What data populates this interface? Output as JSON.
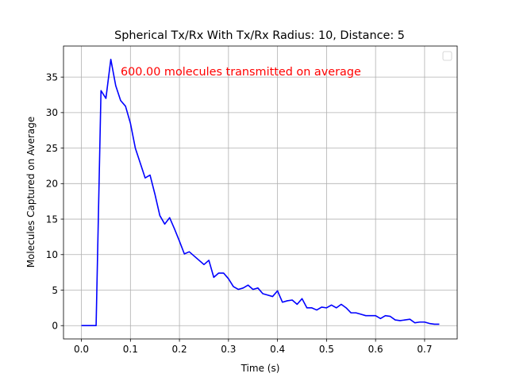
{
  "chart_data": {
    "type": "line",
    "title": "Spherical Tx/Rx With Tx/Rx Radius: 10, Distance: 5",
    "xlabel": "Time (s)",
    "ylabel": "Molecules Captured on Average",
    "annotation": "600.00 molecules transmitted on average",
    "annotation_color": "#ff0000",
    "line_color": "#0000ff",
    "grid": true,
    "legend": "upper-right (empty)",
    "xlim": [
      -0.0365,
      0.7665
    ],
    "ylim": [
      -1.875,
      39.375
    ],
    "xticks": [
      0.0,
      0.1,
      0.2,
      0.3,
      0.4,
      0.5,
      0.6,
      0.7
    ],
    "xtick_labels": [
      "0.0",
      "0.1",
      "0.2",
      "0.3",
      "0.4",
      "0.5",
      "0.6",
      "0.7"
    ],
    "yticks": [
      0,
      5,
      10,
      15,
      20,
      25,
      30,
      35
    ],
    "ytick_labels": [
      "0",
      "5",
      "10",
      "15",
      "20",
      "25",
      "30",
      "35"
    ],
    "series": [
      {
        "x": [
          0.0,
          0.01,
          0.02,
          0.03,
          0.04,
          0.05,
          0.06,
          0.07,
          0.08,
          0.09,
          0.1,
          0.11,
          0.12,
          0.13,
          0.14,
          0.15,
          0.16,
          0.17,
          0.18,
          0.19,
          0.2,
          0.21,
          0.22,
          0.23,
          0.24,
          0.25,
          0.26,
          0.27,
          0.28,
          0.29,
          0.3,
          0.31,
          0.32,
          0.33,
          0.34,
          0.35,
          0.36,
          0.37,
          0.38,
          0.39,
          0.4,
          0.41,
          0.42,
          0.43,
          0.44,
          0.45,
          0.46,
          0.47,
          0.48,
          0.49,
          0.5,
          0.51,
          0.52,
          0.53,
          0.54,
          0.55,
          0.56,
          0.57,
          0.58,
          0.59,
          0.6,
          0.61,
          0.62,
          0.63,
          0.64,
          0.65,
          0.66,
          0.67,
          0.68,
          0.69,
          0.7,
          0.71,
          0.72,
          0.73
        ],
        "values": [
          0,
          0,
          0,
          0,
          33.1,
          32.0,
          37.5,
          33.8,
          31.7,
          30.9,
          28.5,
          25.0,
          22.9,
          20.8,
          21.2,
          18.5,
          15.5,
          14.3,
          15.2,
          13.6,
          11.9,
          10.1,
          10.4,
          9.8,
          9.2,
          8.6,
          9.2,
          6.8,
          7.4,
          7.4,
          6.6,
          5.5,
          5.1,
          5.3,
          5.7,
          5.1,
          5.3,
          4.5,
          4.3,
          4.1,
          4.9,
          3.3,
          3.5,
          3.6,
          3.0,
          3.8,
          2.5,
          2.5,
          2.2,
          2.6,
          2.5,
          2.9,
          2.5,
          3.0,
          2.5,
          1.8,
          1.8,
          1.6,
          1.4,
          1.4,
          1.4,
          1.0,
          1.4,
          1.3,
          0.8,
          0.7,
          0.8,
          0.9,
          0.4,
          0.5,
          0.5,
          0.3,
          0.2,
          0.2
        ]
      }
    ]
  }
}
